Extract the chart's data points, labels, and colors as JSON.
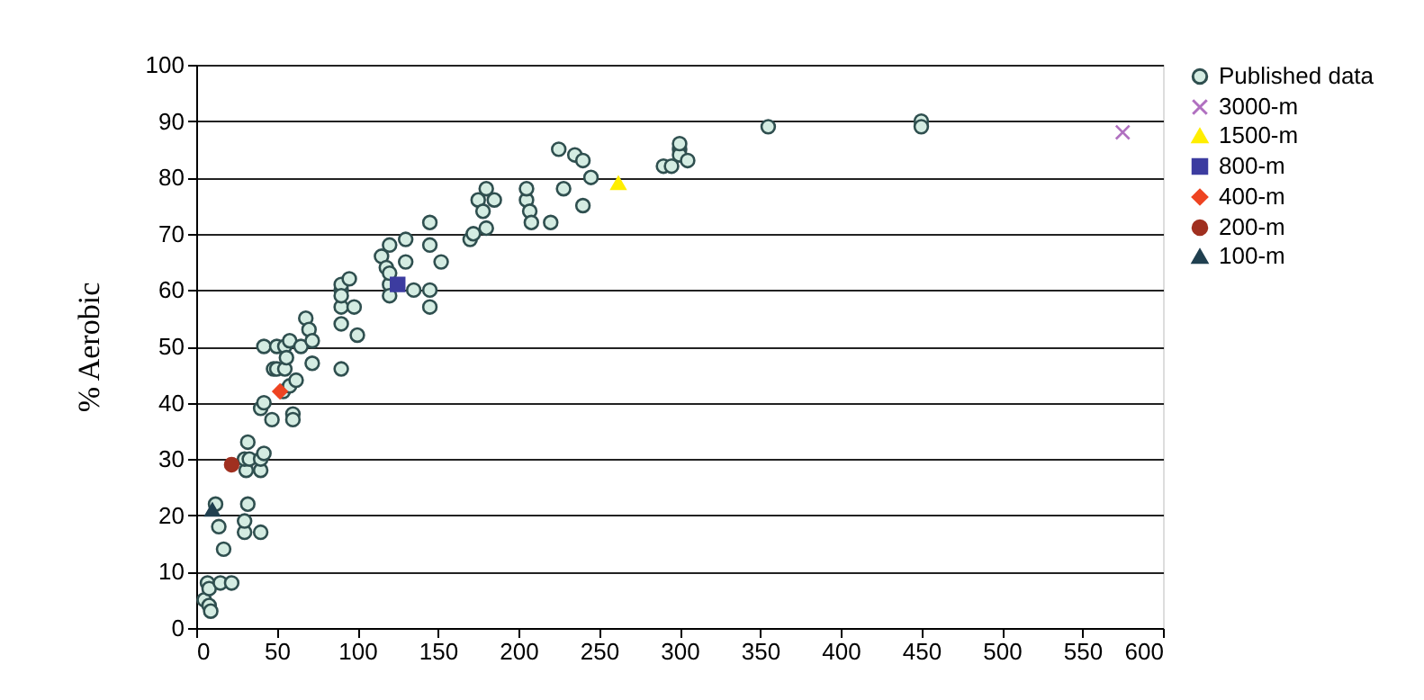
{
  "chart_data": {
    "type": "scatter",
    "ylabel": "% Aerobic",
    "xlim": [
      0,
      600
    ],
    "ylim": [
      0,
      100
    ],
    "xticks": [
      0,
      50,
      100,
      150,
      200,
      250,
      300,
      350,
      400,
      450,
      500,
      550,
      600
    ],
    "yticks": [
      0,
      10,
      20,
      30,
      40,
      50,
      60,
      70,
      80,
      90,
      100
    ],
    "grid": "y",
    "legend": "right",
    "series": [
      {
        "name": "Published data",
        "color": "#d4ece2",
        "marker": "circle",
        "x": [
          5,
          7,
          8,
          9,
          8,
          15,
          12,
          14,
          17,
          22,
          30,
          30,
          32,
          32,
          31,
          30,
          33,
          40,
          40,
          40,
          42,
          40,
          42,
          42,
          47,
          48,
          50,
          50,
          54,
          55,
          55,
          56,
          58,
          60,
          60,
          58,
          62,
          65,
          68,
          70,
          72,
          72,
          90,
          90,
          90,
          90,
          90,
          90,
          95,
          98,
          100,
          115,
          118,
          120,
          120,
          120,
          120,
          130,
          130,
          135,
          145,
          145,
          145,
          145,
          152,
          170,
          172,
          175,
          178,
          180,
          180,
          185,
          205,
          205,
          207,
          208,
          220,
          225,
          228,
          235,
          240,
          240,
          245,
          290,
          295,
          300,
          300,
          300,
          305,
          355,
          450,
          450
        ],
        "values": [
          5,
          8,
          4,
          3,
          7,
          8,
          22,
          18,
          14,
          8,
          17,
          19,
          22,
          33,
          28,
          30,
          30,
          17,
          28,
          30,
          31,
          39,
          40,
          50,
          37,
          46,
          46,
          50,
          42,
          46,
          50,
          48,
          51,
          38,
          37,
          43,
          44,
          50,
          55,
          53,
          47,
          51,
          46,
          54,
          57,
          60,
          61,
          59,
          62,
          57,
          52,
          66,
          64,
          68,
          61,
          59,
          63,
          69,
          65,
          60,
          72,
          68,
          60,
          57,
          65,
          69,
          70,
          76,
          74,
          71,
          78,
          76,
          76,
          78,
          74,
          72,
          72,
          85,
          78,
          84,
          83,
          75,
          80,
          82,
          82,
          85,
          84,
          86,
          83,
          89,
          90,
          89
        ]
      },
      {
        "name": "3000-m",
        "color": "#b070c0",
        "marker": "cross",
        "x": [
          575
        ],
        "values": [
          88
        ]
      },
      {
        "name": "1500-m",
        "color": "#ffee00",
        "marker": "triangle",
        "x": [
          262
        ],
        "values": [
          79
        ]
      },
      {
        "name": "800-m",
        "color": "#3c3ca0",
        "marker": "square",
        "x": [
          125
        ],
        "values": [
          61
        ]
      },
      {
        "name": "400-m",
        "color": "#ee4422",
        "marker": "diamond",
        "x": [
          52
        ],
        "values": [
          42
        ]
      },
      {
        "name": "200-m",
        "color": "#a03020",
        "marker": "circle",
        "x": [
          22
        ],
        "values": [
          29
        ]
      },
      {
        "name": "100-m",
        "color": "#204050",
        "marker": "triangle",
        "x": [
          10
        ],
        "values": [
          21
        ]
      }
    ]
  }
}
